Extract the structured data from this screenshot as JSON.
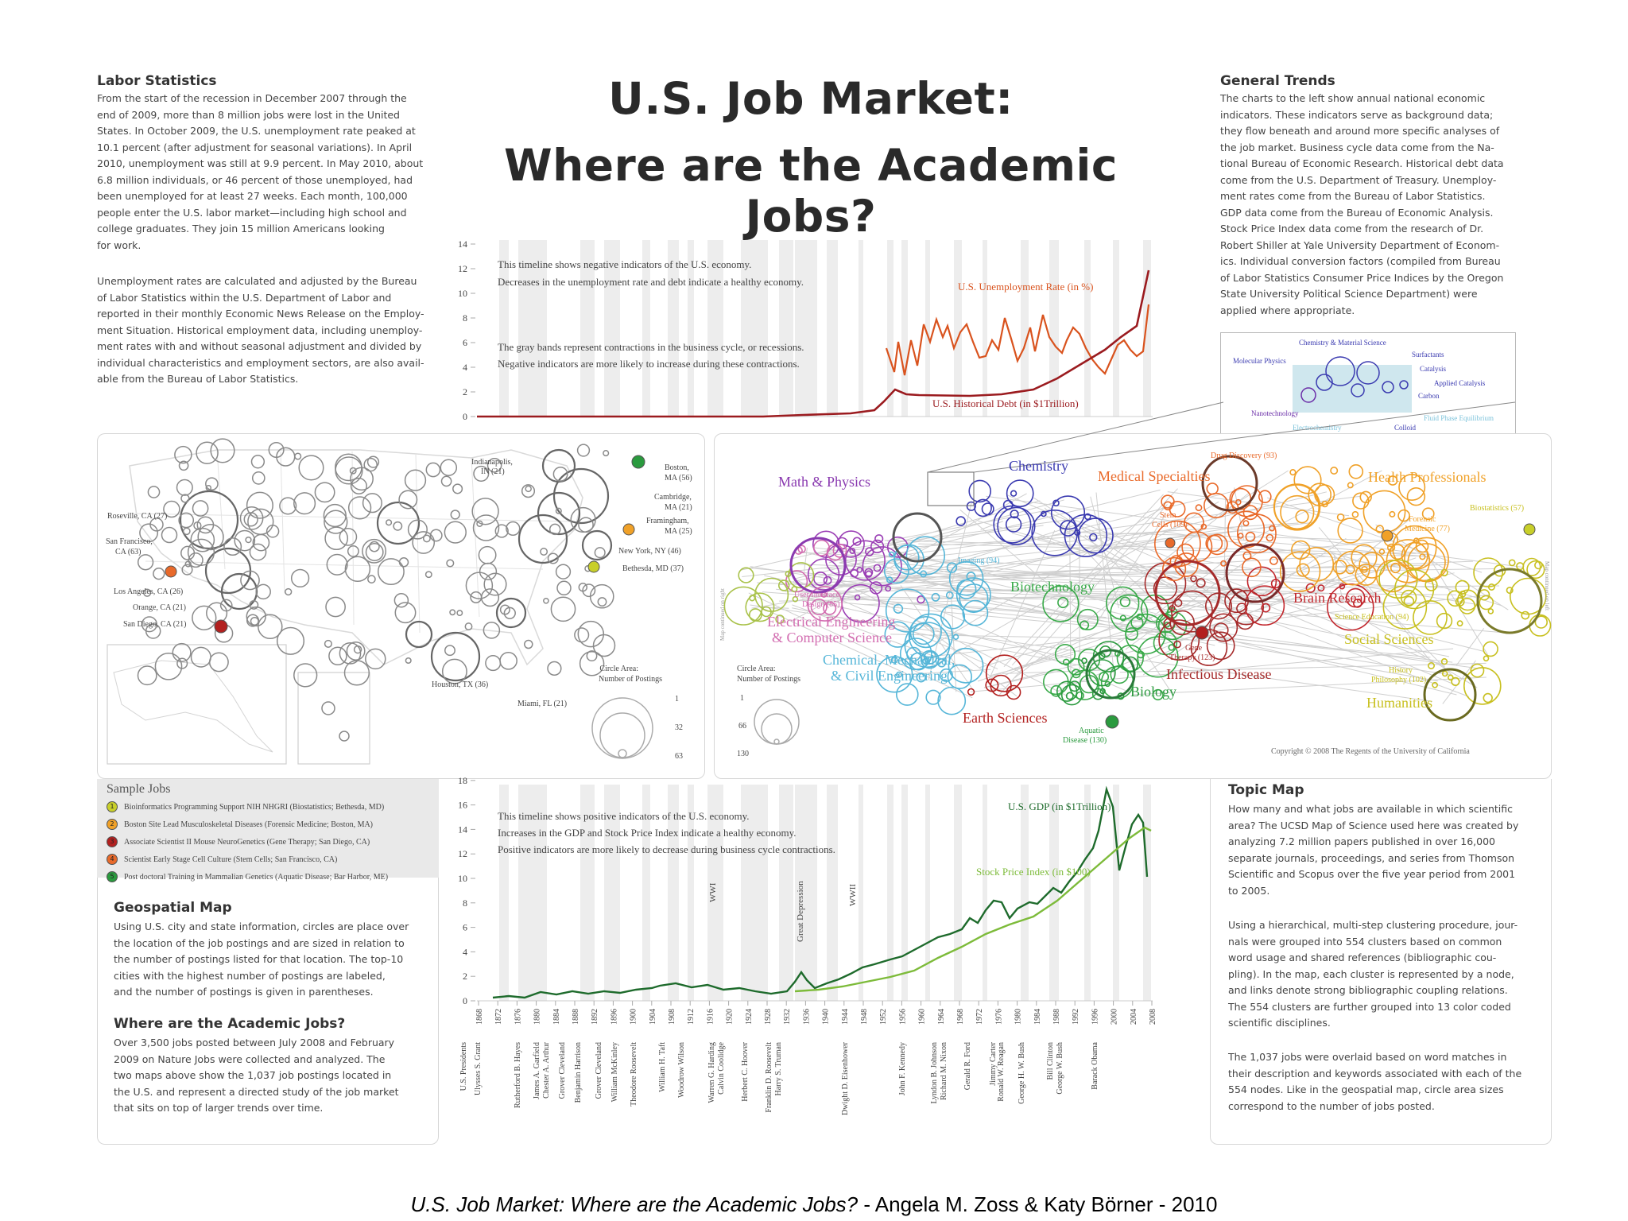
{
  "title_line1": "U.S. Job Market:",
  "title_line2": "Where are the Academic Jobs?",
  "caption_italic": "U.S. Job Market: Where are the Academic Jobs?",
  "caption_rest": " - Angela M. Zoss & Katy Börner - 2010",
  "labor": {
    "heading": "Labor Statistics",
    "para1": "From the start of the recession in December 2007 through the\nend of 2009, more than 8 million jobs were lost in the United\nStates. In October 2009, the U.S. unemployment rate peaked at\n10.1 percent (after adjustment for seasonal variations). In April\n2010, unemployment was still at 9.9 percent. In May 2010, about\n6.8 million individuals, or 46 percent of those unemployed, had\nbeen unemployed for at least 27 weeks. Each month, 100,000\npeople enter the U.S. labor market—including high school and\ncollege graduates. They join 15 million Americans looking\nfor work.",
    "para2": "Unemployment rates are calculated and adjusted by the Bureau\nof Labor Statistics within the U.S. Department of Labor and\nreported in their monthly Economic News Release on the Employ-\nment Situation.  Historical employment data, including unemploy-\nment rates with and without seasonal adjustment and divided by\nindividual characteristics and employment sectors, are also avail-\nable from the Bureau of Labor Statistics."
  },
  "general": {
    "heading": "General Trends",
    "para": "The charts to the left show annual national economic\nindicators. These indicators serve as background data;\nthey flow beneath and around more specific analyses of\nthe job market.  Business cycle data come from the Na-\ntional Bureau of Economic Research.  Historical debt data\ncome from the U.S. Department of Treasury.  Unemploy-\nment rates come from the Bureau of Labor Statistics.\nGDP data come from the Bureau of Economic Analysis.\nStock Price Index data come from the research of Dr.\nRobert Shiller at Yale University Department of Econom-\nics.  Individual conversion factors (compiled from Bureau\nof Labor Statistics Consumer Price Indices by the Oregon\nState University Political Science Department) were\napplied where appropriate."
  },
  "top_chart": {
    "note1": "This timeline shows negative indicators of the U.S. economy.",
    "note2": "Decreases in the unemployment rate and debt indicate a healthy economy.",
    "note3": "The gray bands represent contractions in the business cycle, or recessions.",
    "note4": "Negative indicators are more likely to increase during these contractions.",
    "series_unemp": "U.S. Unemployment Rate (in %)",
    "series_debt": "U.S. Historical Debt (in $1Trillion)",
    "yticks": [
      "0",
      "2",
      "4",
      "6",
      "8",
      "10",
      "12",
      "14"
    ]
  },
  "bottom_chart": {
    "note1": "This timeline shows positive indicators of the U.S. economy.",
    "note2": "Increases in the GDP and Stock Price Index indicate a healthy economy.",
    "note3": "Positive indicators are more likely to decrease during business cycle contractions.",
    "series_gdp": "U.S. GDP (in $1Trillion)",
    "series_stock": "Stock Price Index (in $100)",
    "yticks": [
      "0",
      "2",
      "4",
      "6",
      "8",
      "10",
      "12",
      "14",
      "16",
      "18"
    ],
    "events": [
      "WWI",
      "Great Depression",
      "WWII"
    ],
    "years": [
      "1868",
      "1872",
      "1876",
      "1880",
      "1884",
      "1888",
      "1892",
      "1896",
      "1900",
      "1904",
      "1908",
      "1912",
      "1916",
      "1920",
      "1924",
      "1928",
      "1932",
      "1936",
      "1940",
      "1944",
      "1948",
      "1952",
      "1956",
      "1960",
      "1964",
      "1968",
      "1972",
      "1976",
      "1980",
      "1984",
      "1988",
      "1992",
      "1996",
      "2000",
      "2004",
      "2008"
    ],
    "presidents": [
      "U.S. Presidents",
      "Ulysses S. Grant",
      "Rutherford B. Hayes",
      "James A. Garfield",
      "Chester A. Arthur",
      "Grover Cleveland",
      "Benjamin Harrison",
      "Grover Cleveland",
      "William McKinley",
      "Theodore Roosevelt",
      "William H. Taft",
      "Woodrow Wilson",
      "Warren G. Harding",
      "Calvin Coolidge",
      "Herbert C. Hoover",
      "Franklin D. Roosevelt",
      "Harry S. Truman",
      "Dwight D. Eisenhower",
      "John F. Kennedy",
      "Lyndon B. Johnson",
      "Richard M. Nixon",
      "Gerald R. Ford",
      "Jimmy Carter",
      "Ronald W. Reagan",
      "George H. W. Bush",
      "Bill Clinton",
      "George W. Bush",
      "Barack Obama"
    ]
  },
  "geo_map": {
    "cities": [
      "Indianapolis,",
      "IN (21)",
      "Boston,",
      "MA (56)",
      "Cambridge,",
      "MA (21)",
      "Framingham,",
      "MA (25)",
      "New York, NY (46)",
      "Bethesda, MD (37)",
      "Roseville, CA (27)",
      "San Francisco,",
      "CA (63)",
      "Los Angeles, CA (26)",
      "Orange, CA (21)",
      "San Diego, CA (21)",
      "Houston, TX (36)",
      "Miami, FL (21)"
    ],
    "legend_title1": "Circle Area:",
    "legend_title2": "Number of Postings",
    "legend_values": [
      "1",
      "32",
      "63"
    ]
  },
  "topic_map": {
    "disciplines": [
      "Math & Physics",
      "Chemistry",
      "Medical Specialties",
      "Health Professionals",
      "Electrical Engineering",
      "& Computer Science",
      "Chemical, Mechanical,",
      "& Civil Engineering",
      "Biotechnology",
      "Brain Research",
      "Social Sciences",
      "Earth Sciences",
      "Biology",
      "Infectious Disease",
      "Humanities"
    ],
    "nodes": [
      "Drug Discovery (93)",
      "Stem",
      "Cells (109)",
      "Forensic",
      "Medicine (77)",
      "Biostatistics (57)",
      "User Interface",
      "Design (85)",
      "Imaging (94)",
      "Gene",
      "Therapy (123)",
      "Science Education (94)",
      "History",
      "Philosophy (102)",
      "Aquatic",
      "Disease (130)"
    ],
    "inset": [
      "Chemistry & Material Science",
      "Surfactants",
      "Molecular Physics",
      "Catalysis",
      "Applied Catalysis",
      "Carbon",
      "Nanotechnology",
      "Colloid",
      "Electrochemistry",
      "Fluid Phase Equilibrium"
    ],
    "legend_title1": "Circle Area:",
    "legend_title2": "Number of Postings",
    "legend_values": [
      "1",
      "66",
      "130"
    ],
    "side_left": "Map continued on right",
    "side_right": "Map continued on left",
    "copyright": "Copyright © 2008 The Regents of the University of California"
  },
  "sample_jobs": {
    "heading": "Sample Jobs",
    "items": [
      {
        "num": "1",
        "color": "#c8cf2a",
        "text": "Bioinformatics Programming Support NIH NHGRI (Biostatistics; Bethesda, MD)"
      },
      {
        "num": "2",
        "color": "#f0a128",
        "text": "Boston Site Lead Musculoskeletal Diseases (Forensic Medicine; Boston, MA)"
      },
      {
        "num": "3",
        "color": "#b2201f",
        "text": "Associate Scientist II Mouse NeuroGenetics (Gene Therapy; San Diego, CA)"
      },
      {
        "num": "4",
        "color": "#e86a2b",
        "text": "Scientist Early Stage Cell Culture (Stem Cells; San Francisco, CA)"
      },
      {
        "num": "5",
        "color": "#2a9a3e",
        "text": "Post doctoral Training in Mammalian Genetics (Aquatic Disease; Bar Harbor, ME)"
      }
    ]
  },
  "geospatial": {
    "heading": "Geospatial Map",
    "para": "Using U.S. city and state information, circles are place over\nthe location of the job postings and are sized in relation to\nthe number of postings listed for that location. The top-10\ncities with the highest number of postings are labeled,\nand the number of postings is given in parentheses."
  },
  "where": {
    "heading": "Where are the Academic Jobs?",
    "para": "Over 3,500 jobs posted between July 2008 and February\n2009 on Nature Jobs were collected and analyzed.  The\ntwo maps above show the 1,037 job postings located in\nthe U.S. and represent a directed study of the job market\nthat sits on top of larger trends over time."
  },
  "topic_text": {
    "heading": "Topic Map",
    "para1": "How many and what jobs are available in which scientific\narea? The UCSD Map of Science used here was created by\nanalyzing 7.2 million papers published in over 16,000\nseparate journals, proceedings, and series from Thomson\nScientific and Scopus over the five year period from 2001\nto 2005.",
    "para2": "Using a hierarchical, multi-step clustering procedure, jour-\nnals were grouped into 554 clusters based on common\nword usage and shared references (bibliographic cou-\npling). In the map, each cluster is represented by a node,\nand links denote strong bibliographic coupling relations.\nThe 554 clusters are further grouped into 13 color coded\nscientific disciplines.",
    "para3": "The 1,037 jobs were overlaid based on word matches in\ntheir description and keywords associated with each of the\n554 nodes. Like in the geospatial map, circle area sizes\ncorrespond to the number of jobs posted."
  }
}
